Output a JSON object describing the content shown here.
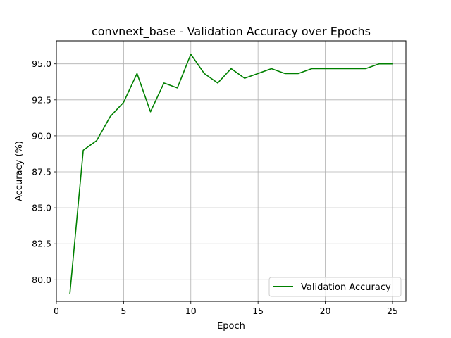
{
  "chart_data": {
    "type": "line",
    "title": "convnext_base - Validation Accuracy over Epochs",
    "xlabel": "Epoch",
    "ylabel": "Accuracy (%)",
    "xlim": [
      0,
      26
    ],
    "ylim": [
      78.5,
      96.6
    ],
    "xticks": [
      0,
      5,
      10,
      15,
      20,
      25
    ],
    "xtick_labels": [
      "0",
      "5",
      "10",
      "15",
      "20",
      "25"
    ],
    "yticks": [
      80.0,
      82.5,
      85.0,
      87.5,
      90.0,
      92.5,
      95.0
    ],
    "ytick_labels": [
      "80.0",
      "82.5",
      "85.0",
      "87.5",
      "90.0",
      "92.5",
      "95.0"
    ],
    "grid": true,
    "legend_position": "lower-right",
    "series": [
      {
        "name": "Validation Accuracy",
        "color": "#008000",
        "x": [
          1,
          2,
          3,
          4,
          5,
          6,
          7,
          8,
          9,
          10,
          11,
          12,
          13,
          14,
          15,
          16,
          17,
          18,
          19,
          20,
          21,
          22,
          23,
          24,
          25
        ],
        "y": [
          79.0,
          89.0,
          89.67,
          91.33,
          92.33,
          94.33,
          91.67,
          93.67,
          93.33,
          95.67,
          94.33,
          93.67,
          94.67,
          94.0,
          94.33,
          94.67,
          94.33,
          94.33,
          94.67,
          94.67,
          94.67,
          94.67,
          94.67,
          95.0,
          95.0
        ]
      }
    ]
  }
}
